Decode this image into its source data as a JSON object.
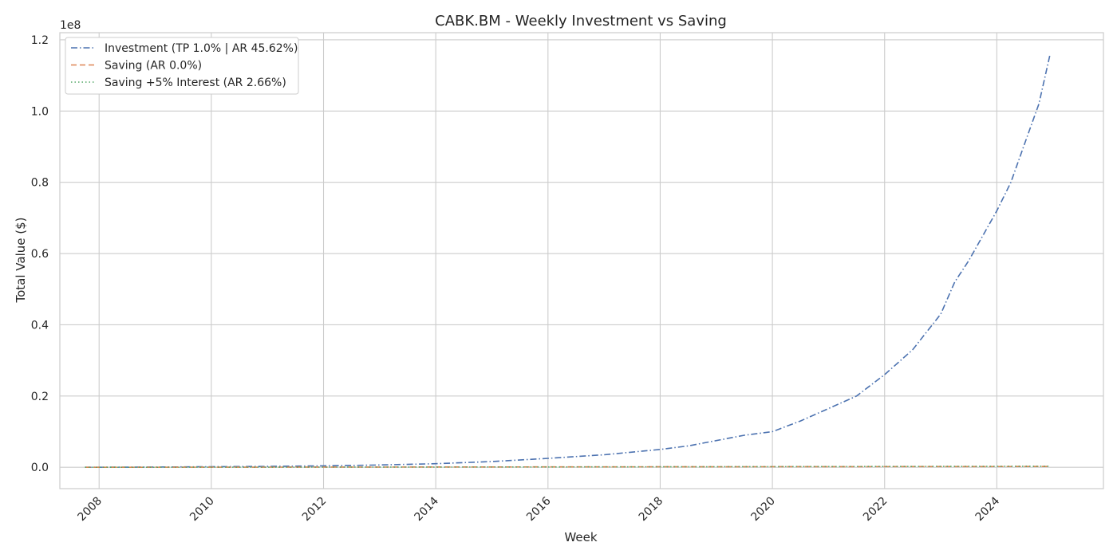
{
  "chart_data": {
    "type": "line",
    "title": "CABK.BM - Weekly Investment vs Saving",
    "xlabel": "Week",
    "ylabel": "Total Value ($)",
    "y_offset_label": "1e8",
    "y_scale_factor": 100000000,
    "xlim": [
      2007.3,
      2025.9
    ],
    "ylim": [
      -0.06,
      1.22
    ],
    "x_ticks": [
      2008,
      2010,
      2012,
      2014,
      2016,
      2018,
      2020,
      2022,
      2024
    ],
    "x_tick_labels": [
      "2008",
      "2010",
      "2012",
      "2014",
      "2016",
      "2018",
      "2020",
      "2022",
      "2024"
    ],
    "y_ticks": [
      0.0,
      0.2,
      0.4,
      0.6,
      0.8,
      1.0,
      1.2
    ],
    "y_tick_labels": [
      "0.0",
      "0.2",
      "0.4",
      "0.6",
      "0.8",
      "1.0",
      "1.2"
    ],
    "grid": true,
    "legend_position": "top-left",
    "series": [
      {
        "name": "Investment (TP 1.0% | AR 45.62%)",
        "color": "#4c72b0",
        "style": "dashdot",
        "x": [
          2007.75,
          2009,
          2010,
          2011,
          2012,
          2013,
          2014,
          2015,
          2016,
          2017,
          2018,
          2018.5,
          2019,
          2019.5,
          2020,
          2020.5,
          2021,
          2021.5,
          2022,
          2022.5,
          2023,
          2023.25,
          2023.5,
          2023.75,
          2024,
          2024.25,
          2024.5,
          2024.75,
          2024.95
        ],
        "y": [
          0.0,
          0.0007,
          0.0015,
          0.0025,
          0.004,
          0.0065,
          0.01,
          0.016,
          0.025,
          0.035,
          0.05,
          0.06,
          0.075,
          0.09,
          0.1,
          0.13,
          0.165,
          0.2,
          0.26,
          0.33,
          0.43,
          0.52,
          0.58,
          0.65,
          0.72,
          0.8,
          0.91,
          1.02,
          1.16
        ]
      },
      {
        "name": "Saving (AR 0.0%)",
        "color": "#dd8452",
        "style": "dashed",
        "x": [
          2007.75,
          2024.95
        ],
        "y": [
          0.0,
          0.0021
        ]
      },
      {
        "name": "Saving +5% Interest (AR 2.66%)",
        "color": "#55a868",
        "style": "dotted",
        "x": [
          2007.75,
          2012,
          2016,
          2020,
          2024.95
        ],
        "y": [
          0.0,
          0.0004,
          0.0009,
          0.0017,
          0.0028
        ]
      }
    ]
  }
}
